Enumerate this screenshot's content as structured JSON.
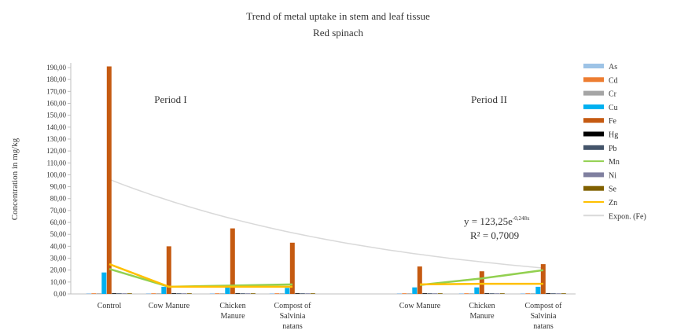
{
  "chart_data": {
    "type": "bar",
    "title": "Trend of metal uptake in stem and leaf tissue",
    "subtitle": "Red spinach",
    "ylabel": "Concentration in mg/kg",
    "xlabel": "",
    "ylim": [
      0,
      190
    ],
    "yticks": [
      "0,00",
      "10,00",
      "20,00",
      "30,00",
      "40,00",
      "50,00",
      "60,00",
      "70,00",
      "80,00",
      "90,00",
      "100,00",
      "110,00",
      "120,00",
      "130,00",
      "140,00",
      "150,00",
      "160,00",
      "170,00",
      "180,00",
      "190,00"
    ],
    "grid": false,
    "legend_position": "right",
    "groups": [
      {
        "label": "Period I",
        "categories": [
          {
            "label": [
              "Control"
            ]
          },
          {
            "label": [
              "Cow Manure"
            ]
          },
          {
            "label": [
              "Chicken",
              "Manure"
            ]
          },
          {
            "label": [
              "Compost of",
              "Salvinia",
              "natans"
            ]
          }
        ]
      },
      {
        "label": "Period II",
        "categories": [
          {
            "label": [
              "Cow Manure"
            ]
          },
          {
            "label": [
              "Chicken",
              "Manure"
            ]
          },
          {
            "label": [
              "Compost of",
              "Salvinia",
              "natans"
            ]
          }
        ]
      }
    ],
    "bar_series": [
      {
        "name": "As",
        "color": "#9dc3e6",
        "values": [
          0.3,
          0.2,
          0.2,
          0.2,
          0.2,
          0.2,
          0.2
        ]
      },
      {
        "name": "Cd",
        "color": "#ed7d31",
        "values": [
          0.1,
          0.1,
          0.1,
          0.1,
          0.1,
          0.1,
          0.1
        ]
      },
      {
        "name": "Cr",
        "color": "#a5a5a5",
        "values": [
          0.3,
          0.3,
          0.3,
          0.3,
          0.3,
          0.3,
          0.3
        ]
      },
      {
        "name": "Cu",
        "color": "#00b0f0",
        "values": [
          18,
          6,
          5.5,
          5,
          5.5,
          5.5,
          6
        ]
      },
      {
        "name": "Fe",
        "color": "#c55a11",
        "values": [
          191,
          40,
          55,
          43,
          23,
          19,
          25
        ]
      },
      {
        "name": "Hg",
        "color": "#000000",
        "values": [
          0.1,
          0.1,
          0.1,
          0.1,
          0.1,
          0.1,
          0.1
        ]
      },
      {
        "name": "Pb",
        "color": "#44546a",
        "values": [
          0.3,
          0.3,
          0.3,
          0.3,
          0.3,
          0.3,
          0.3
        ]
      },
      {
        "name": "Ni",
        "color": "#7f7f9f",
        "values": [
          0.3,
          0.3,
          0.3,
          0.3,
          0.3,
          0.3,
          0.3
        ]
      },
      {
        "name": "Se",
        "color": "#806000",
        "values": [
          0.2,
          0.2,
          0.2,
          0.2,
          0.2,
          0.2,
          0.2
        ]
      }
    ],
    "line_series": [
      {
        "name": "Mn",
        "color": "#92d050",
        "values": [
          21,
          6,
          7,
          8,
          7.5,
          13,
          20
        ]
      },
      {
        "name": "Zn",
        "color": "#ffc000",
        "values": [
          25,
          6,
          6,
          6,
          8,
          8.5,
          8.5
        ]
      }
    ],
    "trendline": {
      "name": "Expon. (Fe)",
      "color": "#d9d9d9",
      "a": 123.25,
      "b": -0.248
    },
    "legend": [
      "As",
      "Cd",
      "Cr",
      "Cu",
      "Fe",
      "Hg",
      "Pb",
      "Mn",
      "Ni",
      "Se",
      "Zn",
      "Expon. (Fe)"
    ],
    "annotations": {
      "equation_base": "y = 123,25e",
      "equation_exp": "-0,248x",
      "r2": "R² = 0,7009"
    }
  }
}
